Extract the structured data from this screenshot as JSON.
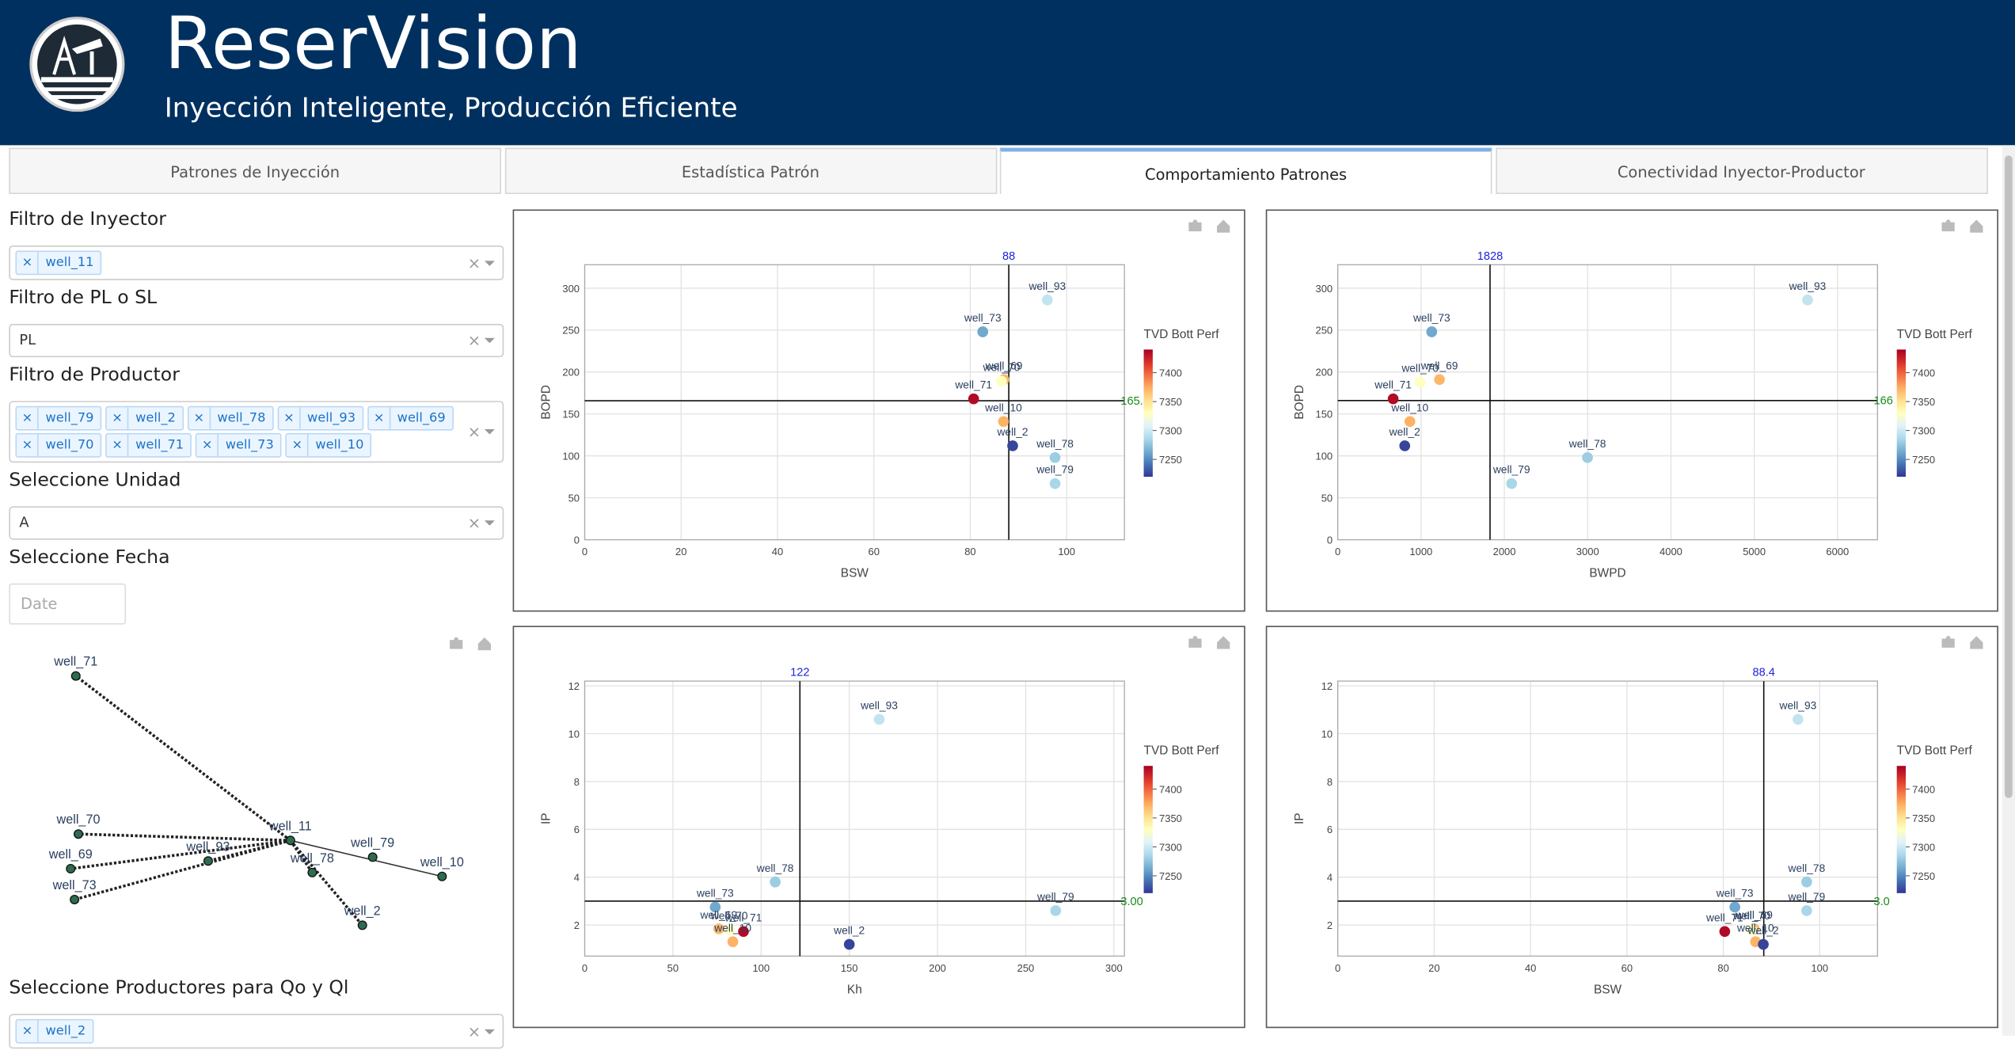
{
  "header": {
    "title": "ReserVision",
    "subtitle": "Inyección Inteligente, Producción Eficiente"
  },
  "tabs": [
    "Patrones de Inyección",
    "Estadística Patrón",
    "Comportamiento Patrones",
    "Conectividad Inyector-Productor"
  ],
  "filters": [
    {
      "label": "Filtro de Inyector",
      "tags": [
        "well_11"
      ]
    },
    {
      "label": "Filtro de PL o SL",
      "value": "PL"
    },
    {
      "label": "Filtro de Productor",
      "tags": [
        "well_79",
        "well_2",
        "well_78",
        "well_93",
        "well_69",
        "well_70",
        "well_71",
        "well_73",
        "well_10"
      ]
    },
    {
      "label": "Seleccione Unidad",
      "value": "A"
    },
    {
      "label": "Seleccione Fecha",
      "placeholder": "Date"
    }
  ],
  "network": {
    "nodes": [
      "well_71",
      "well_70",
      "well_69",
      "well_73",
      "well_93",
      "well_11",
      "well_78",
      "well_79",
      "well_10",
      "well_2"
    ]
  },
  "qo_ql": {
    "label": "Seleccione Productores para Qo y Ql",
    "tags": [
      "well_2"
    ]
  },
  "chart_data": [
    {
      "type": "scatter",
      "x_label": "BSW",
      "y_label": "BOPD",
      "xlim": [
        0,
        112
      ],
      "ylim": [
        0,
        328
      ],
      "xticks": [
        0,
        20,
        40,
        60,
        80,
        100
      ],
      "yticks": [
        0,
        50,
        100,
        150,
        200,
        250,
        300
      ],
      "grid": true,
      "labels": [
        "well_93",
        "well_73",
        "well_69",
        "well_70",
        "well_71",
        "well_10",
        "well_2",
        "well_78",
        "well_79"
      ],
      "x": [
        96,
        82.6,
        87,
        86.5,
        80.7,
        86.9,
        88.8,
        97.6,
        97.6
      ],
      "y": [
        286,
        248,
        191,
        189,
        168,
        141,
        112,
        98,
        67
      ],
      "color_values": [
        7295,
        7262,
        7370,
        7330,
        7435,
        7372,
        7225,
        7280,
        7285
      ],
      "colorbar": {
        "title": "TVD Bott Perf",
        "colorscale": "RdYlBu_r",
        "range": [
          7220,
          7440
        ],
        "ticks": [
          7250,
          7300,
          7350,
          7400
        ]
      },
      "vline": 88,
      "hline": 165.8
    },
    {
      "type": "scatter",
      "x_label": "BWPD",
      "y_label": "BOPD",
      "xlim": [
        0,
        6480
      ],
      "ylim": [
        0,
        328
      ],
      "xticks": [
        0,
        1000,
        2000,
        3000,
        4000,
        5000,
        6000
      ],
      "yticks": [
        0,
        50,
        100,
        150,
        200,
        250,
        300
      ],
      "grid": true,
      "labels": [
        "well_93",
        "well_73",
        "well_69",
        "well_70",
        "well_71",
        "well_10",
        "well_2",
        "well_79",
        "well_78"
      ],
      "x": [
        5640,
        1128,
        1221,
        989,
        665,
        866,
        804,
        2087,
        2998
      ],
      "y": [
        286,
        248,
        191,
        188,
        168,
        141,
        112,
        67,
        98
      ],
      "color_values": [
        7295,
        7262,
        7370,
        7330,
        7435,
        7372,
        7225,
        7285,
        7280
      ],
      "colorbar": {
        "title": "TVD Bott Perf",
        "colorscale": "RdYlBu_r",
        "range": [
          7220,
          7440
        ],
        "ticks": [
          7250,
          7300,
          7350,
          7400
        ]
      },
      "vline": 1828,
      "hline": 166
    },
    {
      "type": "scatter",
      "x_label": "Kh",
      "y_label": "IP",
      "xlim": [
        0,
        306
      ],
      "ylim": [
        0.7,
        12.2
      ],
      "xticks": [
        0,
        50,
        100,
        150,
        200,
        250,
        300
      ],
      "yticks": [
        2,
        4,
        6,
        8,
        10,
        12
      ],
      "grid": true,
      "labels": [
        "well_93",
        "well_78",
        "well_73",
        "well_69",
        "well_71",
        "well_70",
        "well_10",
        "well_2",
        "well_79"
      ],
      "x": [
        167,
        108,
        74,
        76,
        90,
        82,
        84,
        150,
        267
      ],
      "y": [
        10.6,
        3.8,
        2.75,
        1.84,
        1.73,
        1.8,
        1.3,
        1.19,
        2.6
      ],
      "color_values": [
        7295,
        7280,
        7262,
        7370,
        7435,
        7330,
        7372,
        7225,
        7285
      ],
      "colorbar": {
        "title": "TVD Bott Perf",
        "colorscale": "RdYlBu_r",
        "range": [
          7220,
          7440
        ],
        "ticks": [
          7250,
          7300,
          7350,
          7400
        ]
      },
      "vline": 122,
      "hline": {
        "value": 3,
        "label": "3.00"
      }
    },
    {
      "type": "scatter",
      "x_label": "BSW",
      "y_label": "IP",
      "xlim": [
        0,
        112
      ],
      "ylim": [
        0.7,
        12.2
      ],
      "xticks": [
        0,
        20,
        40,
        60,
        80,
        100
      ],
      "yticks": [
        2,
        4,
        6,
        8,
        10,
        12
      ],
      "grid": true,
      "labels": [
        "well_93",
        "well_78",
        "well_79",
        "well_73",
        "well_69",
        "well_71",
        "well_70",
        "well_10",
        "well_2"
      ],
      "x": [
        95.5,
        97.3,
        97.3,
        82.4,
        86.4,
        80.3,
        85.9,
        86.7,
        88.3
      ],
      "y": [
        10.6,
        3.8,
        2.6,
        2.75,
        1.84,
        1.73,
        1.8,
        1.3,
        1.19
      ],
      "color_values": [
        7295,
        7280,
        7285,
        7262,
        7370,
        7435,
        7330,
        7372,
        7225
      ],
      "colorbar": {
        "title": "TVD Bott Perf",
        "colorscale": "RdYlBu_r",
        "range": [
          7220,
          7440
        ],
        "ticks": [
          7250,
          7300,
          7350,
          7400
        ]
      },
      "vline": 88.4,
      "hline": {
        "value": 3,
        "label": "3.0"
      }
    }
  ]
}
